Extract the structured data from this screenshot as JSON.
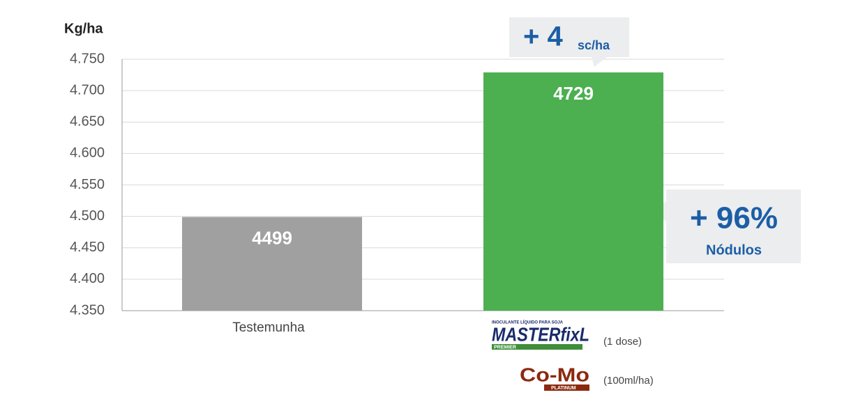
{
  "chart_data": {
    "type": "bar",
    "y_label": "Kg/ha",
    "categories": [
      "Testemunha",
      null
    ],
    "values": [
      4499,
      4729
    ],
    "colors": [
      "#a0a0a0",
      "#4caf50"
    ],
    "ylim": [
      4350,
      4750
    ],
    "yticks": [
      {
        "value": 4350,
        "label": "4.350"
      },
      {
        "value": 4400,
        "label": "4.400"
      },
      {
        "value": 4450,
        "label": "4.450"
      },
      {
        "value": 4500,
        "label": "4.500"
      },
      {
        "value": 4550,
        "label": "4.550"
      },
      {
        "value": 4600,
        "label": "4.600"
      },
      {
        "value": 4650,
        "label": "4.650"
      },
      {
        "value": 4700,
        "label": "4.700"
      },
      {
        "value": 4750,
        "label": "4.750"
      }
    ],
    "grid": true,
    "annotations": {
      "gain": "+ 4",
      "gain_unit": "sc/ha",
      "nodules": "+ 96%",
      "nodules_label": "Nódulos"
    },
    "products": [
      {
        "tagline": "INOCULANTE LÍQUIDO PARA SOJA",
        "logo": "MASTERfixL",
        "subtitle": "PREMIER",
        "note": "(1 dose)"
      },
      {
        "logo": "Co-Mo",
        "subtitle": "PLATINUM",
        "note": "(100ml/ha)"
      }
    ]
  }
}
